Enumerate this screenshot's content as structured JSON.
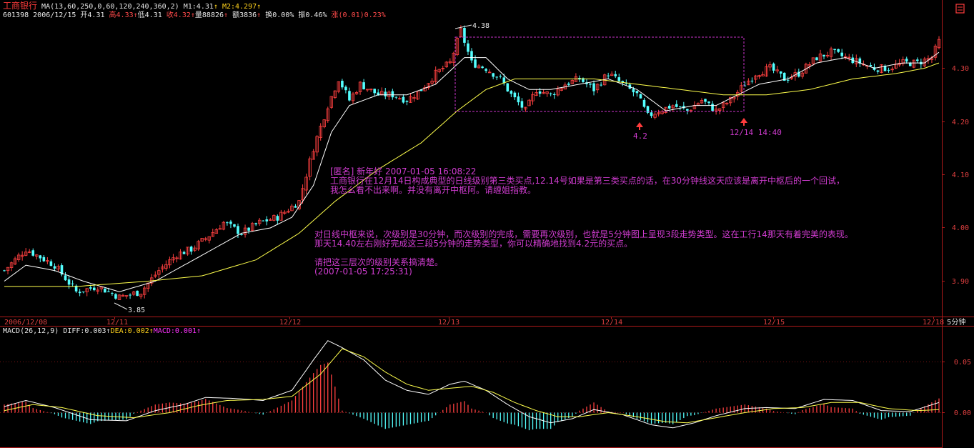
{
  "header": {
    "stock_name": "工商银行",
    "ma_label": "MA(13,60,250,0,60,120,240,360,2)",
    "m1": "M1:4.31",
    "m2": "M2:4.297",
    "code": "601398",
    "date": "2006/12/15",
    "open": "开4.31",
    "high": "高4.33",
    "low": "低4.31",
    "close": "收4.32",
    "volume": "量88826",
    "amount": "额3836",
    "turnover": "换0.00%",
    "amplitude": "振0.46%",
    "change_label": "涨",
    "change_value": "(0.01)",
    "change_pct": "0.23%"
  },
  "colors": {
    "up": "#ff4040",
    "down": "#54ffff",
    "ma1": "#ffffff",
    "ma2": "#ffff4c",
    "axis": "#b01a1a",
    "annotation": "#d03cd0"
  },
  "annotations": {
    "peak_label": "4.38",
    "low_label": "3.85",
    "buy_price": "4.2",
    "buy_time": "12/14 14:40",
    "comment_lines": [
      "[匿名] 新年好     2007-01-05 16:08:22",
      "工商银行在12月14日构成典型的日线级别第三类买点,12.14号如果是第三类买点的话，在30分钟线这天应该是离开中枢后的一个回试，",
      "我怎么看不出来啊。并没有离开中枢阿。请缠姐指教。"
    ],
    "reply_lines": [
      "对日线中枢来说，次级别是30分钟，而次级别的完成，需要再次级别，也就是5分钟图上呈现3段走势类型。这在工行14那天有着完美的表现。",
      "那天14.40左右刚好完成这三段5分钟的走势类型，你可以精确地找到4.2元的买点。",
      "",
      "请把这三层次的级别关系搞清楚。",
      "(2007-01-05 17:25:31)"
    ]
  },
  "macd_header": {
    "label": "MACD(26,12,9)",
    "diff": "DIFF:0.003",
    "dea": "DEA:0.002",
    "macd": "MACD:0.001"
  },
  "chart_data": [
    {
      "type": "candlestick",
      "period": "5分钟",
      "price_ticks": [
        "4.30",
        "4.20",
        "4.10",
        "4.00",
        "3.90"
      ],
      "ylim": [
        3.84,
        4.39
      ],
      "date_ticks": [
        "2006/12/08",
        "12/11",
        "12/12",
        "12/13",
        "12/14",
        "12/15",
        "12/18"
      ],
      "period_label": "5分钟",
      "extremes": {
        "high": 4.38,
        "low": 3.85
      },
      "zhongshu_box": {
        "upper": 4.36,
        "lower": 4.22
      },
      "buy_point": {
        "price": 4.2,
        "time": "12/14 14:40"
      },
      "close_path_knots": [
        [
          0,
          3.92
        ],
        [
          6,
          3.96
        ],
        [
          14,
          3.93
        ],
        [
          20,
          3.88
        ],
        [
          26,
          3.89
        ],
        [
          32,
          3.87
        ],
        [
          38,
          3.88
        ],
        [
          43,
          3.92
        ],
        [
          48,
          3.95
        ],
        [
          52,
          3.96
        ],
        [
          56,
          3.98
        ],
        [
          61,
          4.01
        ],
        [
          66,
          3.99
        ],
        [
          71,
          4.01
        ],
        [
          76,
          4.02
        ],
        [
          82,
          4.05
        ],
        [
          86,
          4.15
        ],
        [
          90,
          4.23
        ],
        [
          93,
          4.28
        ],
        [
          96,
          4.24
        ],
        [
          99,
          4.27
        ],
        [
          104,
          4.25
        ],
        [
          108,
          4.25
        ],
        [
          112,
          4.24
        ],
        [
          116,
          4.26
        ],
        [
          120,
          4.29
        ],
        [
          124,
          4.31
        ],
        [
          127,
          4.37
        ],
        [
          130,
          4.31
        ],
        [
          134,
          4.3
        ],
        [
          138,
          4.28
        ],
        [
          141,
          4.25
        ],
        [
          145,
          4.22
        ],
        [
          148,
          4.26
        ],
        [
          152,
          4.25
        ],
        [
          156,
          4.27
        ],
        [
          160,
          4.28
        ],
        [
          164,
          4.26
        ],
        [
          168,
          4.29
        ],
        [
          172,
          4.27
        ],
        [
          176,
          4.25
        ],
        [
          179,
          4.21
        ],
        [
          182,
          4.22
        ],
        [
          186,
          4.23
        ],
        [
          190,
          4.22
        ],
        [
          194,
          4.24
        ],
        [
          198,
          4.22
        ],
        [
          202,
          4.24
        ],
        [
          206,
          4.27
        ],
        [
          209,
          4.29
        ],
        [
          213,
          4.3
        ],
        [
          217,
          4.28
        ],
        [
          221,
          4.29
        ],
        [
          226,
          4.32
        ],
        [
          230,
          4.33
        ],
        [
          234,
          4.32
        ],
        [
          238,
          4.31
        ],
        [
          242,
          4.3
        ],
        [
          246,
          4.3
        ],
        [
          250,
          4.31
        ],
        [
          254,
          4.31
        ],
        [
          258,
          4.32
        ],
        [
          260,
          4.35
        ]
      ],
      "ma1_knots": [
        [
          0,
          3.9
        ],
        [
          6,
          3.93
        ],
        [
          14,
          3.92
        ],
        [
          22,
          3.9
        ],
        [
          32,
          3.88
        ],
        [
          42,
          3.9
        ],
        [
          50,
          3.93
        ],
        [
          58,
          3.96
        ],
        [
          66,
          3.99
        ],
        [
          74,
          4.0
        ],
        [
          80,
          4.02
        ],
        [
          86,
          4.08
        ],
        [
          91,
          4.18
        ],
        [
          96,
          4.23
        ],
        [
          104,
          4.25
        ],
        [
          112,
          4.25
        ],
        [
          120,
          4.27
        ],
        [
          128,
          4.32
        ],
        [
          134,
          4.32
        ],
        [
          140,
          4.28
        ],
        [
          146,
          4.26
        ],
        [
          152,
          4.26
        ],
        [
          160,
          4.27
        ],
        [
          168,
          4.28
        ],
        [
          176,
          4.26
        ],
        [
          184,
          4.22
        ],
        [
          192,
          4.23
        ],
        [
          198,
          4.23
        ],
        [
          204,
          4.25
        ],
        [
          210,
          4.27
        ],
        [
          218,
          4.28
        ],
        [
          226,
          4.31
        ],
        [
          234,
          4.32
        ],
        [
          242,
          4.3
        ],
        [
          250,
          4.31
        ],
        [
          256,
          4.31
        ],
        [
          260,
          4.33
        ]
      ],
      "ma2_knots": [
        [
          0,
          3.89
        ],
        [
          20,
          3.89
        ],
        [
          40,
          3.9
        ],
        [
          55,
          3.91
        ],
        [
          70,
          3.94
        ],
        [
          82,
          3.99
        ],
        [
          92,
          4.05
        ],
        [
          104,
          4.11
        ],
        [
          116,
          4.16
        ],
        [
          126,
          4.22
        ],
        [
          134,
          4.26
        ],
        [
          142,
          4.28
        ],
        [
          152,
          4.28
        ],
        [
          164,
          4.28
        ],
        [
          176,
          4.27
        ],
        [
          188,
          4.26
        ],
        [
          200,
          4.25
        ],
        [
          212,
          4.25
        ],
        [
          224,
          4.26
        ],
        [
          236,
          4.28
        ],
        [
          248,
          4.29
        ],
        [
          256,
          4.3
        ],
        [
          260,
          4.31
        ]
      ]
    },
    {
      "type": "macd",
      "yticks": [
        "0.05",
        "0.00"
      ],
      "ylim": [
        -0.035,
        0.08
      ],
      "diff_knots": [
        [
          0,
          0.006
        ],
        [
          6,
          0.012
        ],
        [
          14,
          0.005
        ],
        [
          24,
          -0.007
        ],
        [
          34,
          -0.008
        ],
        [
          42,
          0.002
        ],
        [
          50,
          0.008
        ],
        [
          56,
          0.015
        ],
        [
          64,
          0.014
        ],
        [
          72,
          0.012
        ],
        [
          80,
          0.022
        ],
        [
          86,
          0.052
        ],
        [
          90,
          0.071
        ],
        [
          94,
          0.064
        ],
        [
          100,
          0.052
        ],
        [
          106,
          0.032
        ],
        [
          112,
          0.022
        ],
        [
          118,
          0.018
        ],
        [
          124,
          0.028
        ],
        [
          128,
          0.031
        ],
        [
          134,
          0.022
        ],
        [
          140,
          0.008
        ],
        [
          146,
          -0.004
        ],
        [
          152,
          -0.01
        ],
        [
          158,
          -0.006
        ],
        [
          164,
          0.003
        ],
        [
          172,
          -0.002
        ],
        [
          180,
          -0.012
        ],
        [
          186,
          -0.015
        ],
        [
          192,
          -0.01
        ],
        [
          198,
          -0.003
        ],
        [
          206,
          0.004
        ],
        [
          212,
          0.005
        ],
        [
          220,
          0.004
        ],
        [
          228,
          0.013
        ],
        [
          236,
          0.012
        ],
        [
          244,
          0.002
        ],
        [
          252,
          0.001
        ],
        [
          260,
          0.01
        ]
      ],
      "dea_knots": [
        [
          0,
          0.002
        ],
        [
          8,
          0.008
        ],
        [
          16,
          0.005
        ],
        [
          26,
          -0.003
        ],
        [
          36,
          -0.005
        ],
        [
          46,
          0.0
        ],
        [
          54,
          0.007
        ],
        [
          62,
          0.012
        ],
        [
          72,
          0.013
        ],
        [
          80,
          0.016
        ],
        [
          88,
          0.038
        ],
        [
          94,
          0.063
        ],
        [
          100,
          0.055
        ],
        [
          106,
          0.04
        ],
        [
          112,
          0.028
        ],
        [
          118,
          0.022
        ],
        [
          124,
          0.024
        ],
        [
          130,
          0.026
        ],
        [
          136,
          0.02
        ],
        [
          142,
          0.01
        ],
        [
          148,
          0.002
        ],
        [
          154,
          -0.004
        ],
        [
          160,
          -0.004
        ],
        [
          168,
          0.0
        ],
        [
          176,
          -0.004
        ],
        [
          184,
          -0.009
        ],
        [
          190,
          -0.01
        ],
        [
          198,
          -0.005
        ],
        [
          206,
          0.0
        ],
        [
          214,
          0.004
        ],
        [
          222,
          0.005
        ],
        [
          230,
          0.01
        ],
        [
          238,
          0.01
        ],
        [
          246,
          0.004
        ],
        [
          254,
          0.002
        ],
        [
          260,
          0.003
        ]
      ]
    }
  ]
}
